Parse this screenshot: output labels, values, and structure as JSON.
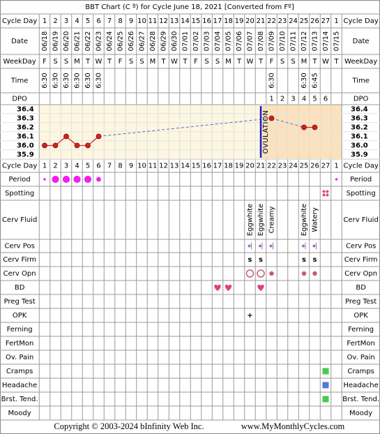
{
  "header": {
    "title": "BBT Chart (C º) for Cycle June 18, 2021  [Converted from Fº]"
  },
  "labels": {
    "cycle_day": "Cycle Day",
    "date": "Date",
    "weekday": "WeekDay",
    "time": "Time",
    "dpo": "DPO"
  },
  "days": [
    1,
    2,
    3,
    4,
    5,
    6,
    7,
    8,
    9,
    10,
    11,
    12,
    13,
    14,
    15,
    16,
    17,
    18,
    19,
    20,
    21,
    22,
    23,
    24,
    25,
    26,
    27,
    1
  ],
  "dates": [
    "06/18",
    "06/19",
    "06/20",
    "06/21",
    "06/22",
    "06/23",
    "06/24",
    "06/25",
    "06/26",
    "06/27",
    "06/28",
    "06/29",
    "06/30",
    "07/01",
    "07/02",
    "07/03",
    "07/04",
    "07/05",
    "07/06",
    "07/07",
    "07/08",
    "07/09",
    "07/10",
    "07/11",
    "07/12",
    "07/13",
    "07/14",
    "07/15"
  ],
  "weekdays": [
    "F",
    "S",
    "S",
    "M",
    "T",
    "W",
    "T",
    "F",
    "S",
    "S",
    "M",
    "T",
    "W",
    "T",
    "F",
    "S",
    "S",
    "M",
    "T",
    "W",
    "T",
    "F",
    "S",
    "S",
    "M",
    "T",
    "W",
    "T"
  ],
  "times": [
    "6:30",
    "6:30",
    "6:30",
    "6:30",
    "6:30",
    "6:30",
    null,
    null,
    null,
    null,
    null,
    null,
    null,
    null,
    null,
    null,
    null,
    null,
    null,
    null,
    null,
    "6:30",
    null,
    null,
    "6:30",
    "6:45",
    null,
    null
  ],
  "dpo": [
    null,
    null,
    null,
    null,
    null,
    null,
    null,
    null,
    null,
    null,
    null,
    null,
    null,
    null,
    null,
    null,
    null,
    null,
    null,
    null,
    null,
    1,
    2,
    3,
    4,
    5,
    6,
    null
  ],
  "temperature": {
    "values": [
      36,
      36,
      36.1,
      36,
      36,
      36.1,
      null,
      null,
      null,
      null,
      null,
      null,
      null,
      null,
      null,
      null,
      null,
      null,
      null,
      null,
      null,
      36.3,
      null,
      null,
      36.2,
      36.2,
      null,
      null
    ],
    "ylim": [
      35.85,
      36.45
    ],
    "yticks": [
      36.4,
      36.3,
      36.2,
      36.1,
      {
        "value": 36,
        "label": "36.0"
      },
      35.9
    ],
    "color": "#d62020",
    "ovulation": {
      "label": "OVULATION",
      "cycle_day": 21,
      "color": "#1a1ad0"
    }
  },
  "rows": [
    {
      "label": "Period",
      "kind": "dot",
      "color": "#ee22ee",
      "marks": [
        1,
        3,
        3,
        3,
        3,
        2,
        null,
        null,
        null,
        null,
        null,
        null,
        null,
        null,
        null,
        null,
        null,
        null,
        null,
        null,
        null,
        null,
        null,
        null,
        null,
        null,
        null,
        1
      ]
    },
    {
      "label": "Spotting",
      "kind": "spots",
      "color": "#e0408a",
      "marks": [
        null,
        null,
        null,
        null,
        null,
        null,
        null,
        null,
        null,
        null,
        null,
        null,
        null,
        null,
        null,
        null,
        null,
        null,
        null,
        null,
        null,
        null,
        null,
        null,
        null,
        null,
        true,
        null
      ]
    },
    {
      "label": "Cerv Fluid",
      "kind": "vtext",
      "marks": [
        null,
        null,
        null,
        null,
        null,
        null,
        null,
        null,
        null,
        null,
        null,
        null,
        null,
        null,
        null,
        null,
        null,
        null,
        null,
        "Eggwhite",
        "Eggwhite",
        "Creamy",
        null,
        null,
        "Eggwhite",
        "Watery",
        null,
        null
      ]
    },
    {
      "label": "Cerv Pos",
      "kind": "pos",
      "color": "#a070c0",
      "marks": [
        null,
        null,
        null,
        null,
        null,
        null,
        null,
        null,
        null,
        null,
        null,
        null,
        null,
        null,
        null,
        null,
        null,
        null,
        null,
        true,
        true,
        true,
        null,
        null,
        true,
        true,
        null,
        null
      ]
    },
    {
      "label": "Cerv Firm",
      "kind": "text",
      "color": "#a050c0",
      "marks": [
        null,
        null,
        null,
        null,
        null,
        null,
        null,
        null,
        null,
        null,
        null,
        null,
        null,
        null,
        null,
        null,
        null,
        null,
        null,
        "s",
        "s",
        null,
        null,
        null,
        "s",
        "s",
        null,
        null
      ]
    },
    {
      "label": "Cerv Opn",
      "kind": "ring",
      "color": "#c06070",
      "marks": [
        null,
        null,
        null,
        null,
        null,
        null,
        null,
        null,
        null,
        null,
        null,
        null,
        null,
        null,
        null,
        null,
        null,
        null,
        null,
        2,
        2,
        1,
        null,
        null,
        1,
        1,
        null,
        null
      ]
    },
    {
      "label": "BD",
      "kind": "heart",
      "color": "#e0407a",
      "marks": [
        null,
        null,
        null,
        null,
        null,
        null,
        null,
        null,
        null,
        null,
        null,
        null,
        null,
        null,
        null,
        null,
        true,
        true,
        null,
        null,
        true,
        null,
        null,
        null,
        null,
        null,
        null,
        null
      ]
    },
    {
      "label": "Preg Test"
    },
    {
      "label": "OPK",
      "kind": "text",
      "color": "#8030c0",
      "marks": [
        null,
        null,
        null,
        null,
        null,
        null,
        null,
        null,
        null,
        null,
        null,
        null,
        null,
        null,
        null,
        null,
        null,
        null,
        null,
        "+",
        null,
        null,
        null,
        null,
        null,
        null,
        null,
        null
      ]
    },
    {
      "label": "Ferning"
    },
    {
      "label": "FertMon"
    },
    {
      "label": "Ov. Pain"
    },
    {
      "label": "Cramps",
      "kind": "square",
      "color": "#44cc55",
      "marks": [
        null,
        null,
        null,
        null,
        null,
        null,
        null,
        null,
        null,
        null,
        null,
        null,
        null,
        null,
        null,
        null,
        null,
        null,
        null,
        null,
        null,
        null,
        null,
        null,
        null,
        null,
        true,
        null
      ]
    },
    {
      "label": "Headache",
      "kind": "square",
      "color": "#5577dd",
      "marks": [
        null,
        null,
        null,
        null,
        null,
        null,
        null,
        null,
        null,
        null,
        null,
        null,
        null,
        null,
        null,
        null,
        null,
        null,
        null,
        null,
        null,
        null,
        null,
        null,
        null,
        null,
        true,
        null
      ]
    },
    {
      "label": "Brst. Tend.",
      "kind": "square",
      "color": "#44cc55",
      "marks": [
        null,
        null,
        null,
        null,
        null,
        null,
        null,
        null,
        null,
        null,
        null,
        null,
        null,
        null,
        null,
        null,
        null,
        null,
        null,
        null,
        null,
        null,
        null,
        null,
        null,
        null,
        true,
        null
      ]
    },
    {
      "label": "Moody"
    }
  ],
  "footer": {
    "copyright": "Copyright © 2003-2024 bInfinity Web Inc.",
    "url": "www.MyMonthlyCycles.com"
  }
}
